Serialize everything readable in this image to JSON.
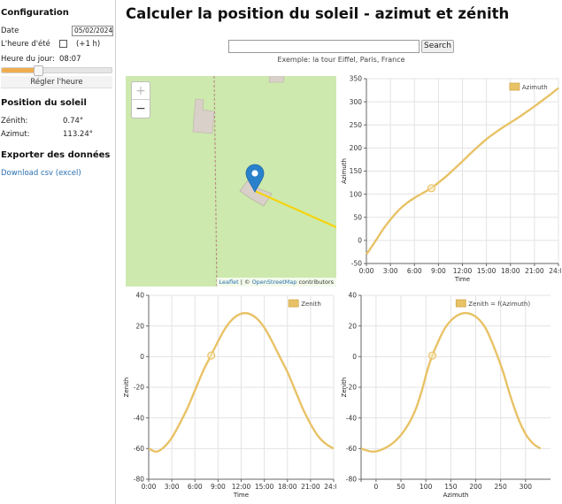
{
  "sidebar": {
    "config_heading": "Configuration",
    "date_label": "Date",
    "date_value": "05/02/2024",
    "dst_label": "L'heure d'été",
    "dst_suffix": "(+1 h)",
    "time_label": "Heure du jour:",
    "time_value": "08:07",
    "time_fraction": 0.338,
    "set_time_button": "Régler l'heure",
    "position_heading": "Position du soleil",
    "zenith_label": "Zénith:",
    "zenith_value": "0.74°",
    "azimuth_label": "Azimut:",
    "azimuth_value": "113.24°",
    "export_heading": "Exporter des données",
    "download_link": "Download csv (excel)"
  },
  "main": {
    "title": "Calculer la position du soleil - azimut et zénith",
    "search_placeholder": "",
    "search_button": "Search",
    "search_example": "Exemple: la tour Eiffel, Paris, France"
  },
  "map": {
    "zoom_in": "+",
    "zoom_out": "−",
    "attribution_leaflet": "Leaflet",
    "attribution_sep": " | © ",
    "attribution_osm": "OpenStreetMap",
    "attribution_tail": " contributors",
    "marker_icon": "map-marker-icon",
    "line_color": "#f5d30e"
  },
  "colors": {
    "series": "#e8c266",
    "series_dark": "#d2a94a",
    "slider_fill": "#f0ad4e",
    "map_bg": "#cde9ae"
  },
  "chart_data": [
    {
      "id": "azimuth-time",
      "type": "line",
      "series": [
        {
          "name": "Azimuth"
        }
      ],
      "xlabel": "Time",
      "ylabel": "Azimuth",
      "xlim": [
        0,
        24
      ],
      "ylim": [
        -50,
        350
      ],
      "xticks": [
        "0:00",
        "3:00",
        "6:00",
        "9:00",
        "12:00",
        "15:00",
        "18:00",
        "21:00",
        "24:00"
      ],
      "yticks": [
        -50,
        0,
        50,
        100,
        150,
        200,
        250,
        300,
        350
      ],
      "x": [
        0,
        1,
        2,
        3,
        4,
        5,
        6,
        7,
        8,
        9,
        10,
        11,
        12,
        13,
        14,
        15,
        16,
        17,
        18,
        19,
        20,
        21,
        22,
        23,
        24
      ],
      "y": [
        -30,
        -5,
        22,
        45,
        65,
        80,
        92,
        102,
        112,
        125,
        139,
        155,
        171,
        188,
        204,
        219,
        232,
        244,
        255,
        266,
        278,
        290,
        303,
        316,
        330
      ],
      "marker": {
        "x": 8.12,
        "y": 113
      },
      "legend": "top-right",
      "grid": true
    },
    {
      "id": "zenith-time",
      "type": "line",
      "series": [
        {
          "name": "Zenith"
        }
      ],
      "xlabel": "Time",
      "ylabel": "Zenith",
      "xlim": [
        0,
        24
      ],
      "ylim": [
        -80,
        40
      ],
      "xticks": [
        "0:00",
        "3:00",
        "6:00",
        "9:00",
        "12:00",
        "15:00",
        "18:00",
        "21:00",
        "24:00"
      ],
      "yticks": [
        -80,
        -60,
        -40,
        -20,
        0,
        20,
        40
      ],
      "x": [
        0,
        1,
        2,
        3,
        4,
        5,
        6,
        7,
        8,
        9,
        10,
        11,
        12,
        13,
        14,
        15,
        16,
        17,
        18,
        19,
        20,
        21,
        22,
        23,
        24
      ],
      "y": [
        -60,
        -62,
        -59,
        -53,
        -44,
        -34,
        -22,
        -10,
        0,
        10,
        19,
        25,
        28,
        28,
        25,
        19,
        10,
        0,
        -10,
        -22,
        -34,
        -44,
        -52,
        -57,
        -60
      ],
      "marker": {
        "x": 8.12,
        "y": 0.74
      },
      "legend": "top-right",
      "grid": true
    },
    {
      "id": "zenith-azimuth",
      "type": "line",
      "series": [
        {
          "name": "Zenith = f(Azimuth)"
        }
      ],
      "xlabel": "Azimuth",
      "ylabel": "Zenith",
      "xlim": [
        -30,
        350
      ],
      "ylim": [
        -80,
        40
      ],
      "xticks": [
        "0",
        "50",
        "100",
        "150",
        "200",
        "250",
        "300"
      ],
      "xtick_values": [
        0,
        50,
        100,
        150,
        200,
        250,
        300
      ],
      "yticks": [
        -80,
        -60,
        -40,
        -20,
        0,
        20,
        40
      ],
      "x": [
        -30,
        -5,
        22,
        45,
        65,
        80,
        92,
        102,
        112,
        125,
        139,
        155,
        171,
        188,
        204,
        219,
        232,
        244,
        255,
        266,
        278,
        290,
        303,
        316,
        330
      ],
      "y": [
        -60,
        -62,
        -59,
        -53,
        -44,
        -34,
        -22,
        -10,
        0,
        10,
        19,
        25,
        28,
        28,
        25,
        19,
        10,
        0,
        -10,
        -22,
        -34,
        -44,
        -52,
        -57,
        -60
      ],
      "marker": {
        "x": 113,
        "y": 0.74
      },
      "legend": "top-right",
      "grid": true
    }
  ]
}
